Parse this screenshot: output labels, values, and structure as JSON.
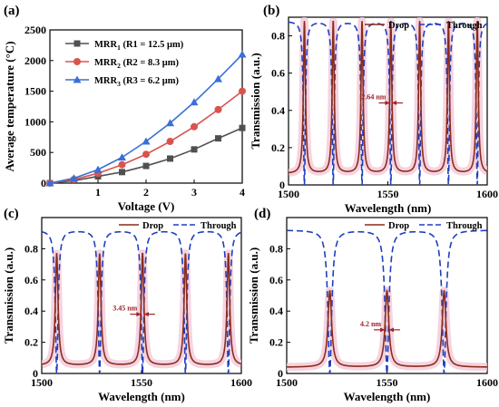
{
  "colors": {
    "mrr1": "#505050",
    "mrr2": "#d9534f",
    "mrr3": "#3a6fd8",
    "drop": "#8b2c1a",
    "through": "#1f3fbf",
    "dropFill": "#f2c8d8",
    "annotation": "#a0222a"
  },
  "chart_data": [
    {
      "id": "a",
      "panel_label": "(a)",
      "type": "line",
      "xlabel": "Voltage (V)",
      "ylabel": "Average temperature  (°C)",
      "xlim": [
        0,
        4
      ],
      "ylim": [
        0,
        2500
      ],
      "xticks": [
        1,
        2,
        3,
        4
      ],
      "yticks": [
        0,
        500,
        1000,
        1500,
        2000,
        2500
      ],
      "legend_position": "top-left",
      "x": [
        0,
        0.5,
        1,
        1.5,
        2,
        2.5,
        3,
        3.5,
        4
      ],
      "series": [
        {
          "name": "MRR1 (R1 = 12.5 μm)",
          "label_base": "MRR",
          "label_sub": "1",
          "label_rest": " (R1 = 12.5 μm)",
          "marker": "square",
          "color_key": "mrr1",
          "values": [
            0,
            40,
            110,
            180,
            280,
            400,
            550,
            730,
            900
          ]
        },
        {
          "name": "MRR2 (R2 = 8.3 μm)",
          "label_base": "MRR",
          "label_sub": "2",
          "label_rest": " (R2 = 8.3 μm)",
          "marker": "circle",
          "color_key": "mrr2",
          "values": [
            0,
            60,
            160,
            300,
            470,
            680,
            920,
            1200,
            1500
          ]
        },
        {
          "name": "MRR3 (R3 = 6.2 μm)",
          "label_base": "MRR",
          "label_sub": "3",
          "label_rest": " (R3 = 6.2 μm)",
          "marker": "triangle",
          "color_key": "mrr3",
          "values": [
            0,
            80,
            220,
            420,
            680,
            980,
            1320,
            1700,
            2100
          ]
        }
      ]
    },
    {
      "id": "b",
      "panel_label": "(b)",
      "type": "line",
      "xlabel": "Wavelength (nm)",
      "ylabel": "Transmission (a.u.)",
      "xlim": [
        1500,
        1600
      ],
      "ylim": [
        0,
        0.9
      ],
      "xticks": [
        1500,
        1550,
        1600
      ],
      "yticks": [
        0,
        0.2,
        0.4,
        0.6,
        0.8
      ],
      "legend": [
        "Drop",
        "Through"
      ],
      "legend_position": "top",
      "fsr_nm": 14.5,
      "resonances": [
        1508,
        1522.5,
        1537,
        1551.5,
        1566,
        1580.5,
        1595
      ],
      "drop_peak": 0.88,
      "drop_floor": 0.06,
      "through_max": 0.88,
      "through_min": 0.0,
      "fwhm_nm": 1.2,
      "annotation": {
        "text": "2.64 nm",
        "x": 1551.5,
        "y": 0.44
      }
    },
    {
      "id": "c",
      "panel_label": "(c)",
      "type": "line",
      "xlabel": "Wavelength (nm)",
      "ylabel": "Transmission (a.u.)",
      "xlim": [
        1500,
        1600
      ],
      "ylim": [
        0,
        1.0
      ],
      "xticks": [
        1500,
        1550,
        1600
      ],
      "yticks": [
        0,
        0.2,
        0.4,
        0.6,
        0.8
      ],
      "legend": [
        "Drop",
        "Through"
      ],
      "legend_position": "top",
      "fsr_nm": 21.5,
      "resonances": [
        1507.5,
        1529,
        1550.5,
        1572,
        1593.5
      ],
      "drop_peak": 0.77,
      "drop_floor": 0.05,
      "through_max": 0.92,
      "through_min": 0.0,
      "fwhm_nm": 1.6,
      "annotation": {
        "text": "3.45 nm",
        "x": 1550.5,
        "y": 0.38
      }
    },
    {
      "id": "d",
      "panel_label": "(d)",
      "type": "line",
      "xlabel": "Wavelength (nm)",
      "ylabel": "Transmission (a.u.)",
      "xlim": [
        1500,
        1600
      ],
      "ylim": [
        0,
        1.0
      ],
      "xticks": [
        1500,
        1550,
        1600
      ],
      "yticks": [
        0,
        0.2,
        0.4,
        0.6,
        0.8
      ],
      "legend": [
        "Drop",
        "Through"
      ],
      "legend_position": "top",
      "fsr_nm": 28.5,
      "resonances": [
        1521.5,
        1550,
        1578.5
      ],
      "drop_peak": 0.53,
      "drop_floor": 0.04,
      "through_max": 0.92,
      "through_min": 0.0,
      "fwhm_nm": 2.2,
      "annotation": {
        "text": "4.2 nm",
        "x": 1550,
        "y": 0.28
      }
    }
  ]
}
